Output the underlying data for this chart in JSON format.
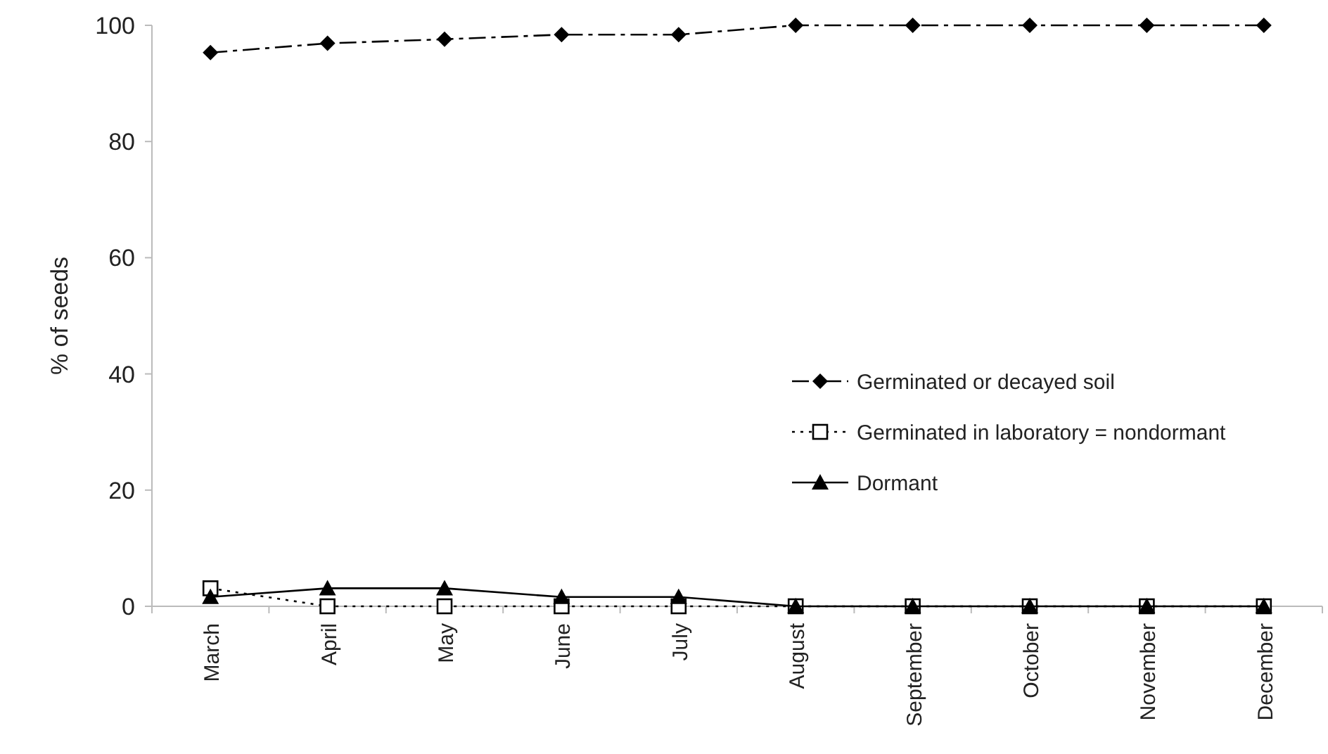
{
  "chart_data": {
    "type": "line",
    "ylabel": "% of seeds",
    "categories": [
      "March",
      "April",
      "May",
      "June",
      "July",
      "August",
      "September",
      "October",
      "November",
      "December"
    ],
    "series": [
      {
        "name": "Germinated or decayed soil",
        "color": "#000000",
        "marker": "diamond",
        "line_style": "dashed",
        "values": [
          95.3,
          96.9,
          97.6,
          98.4,
          98.4,
          100,
          100,
          100,
          100,
          100
        ]
      },
      {
        "name": "Germinated in laboratory = nondormant",
        "color": "#000000",
        "marker": "square",
        "line_style": "dotted",
        "values": [
          3.1,
          0,
          0,
          0,
          0,
          0,
          0,
          0,
          0,
          0
        ]
      },
      {
        "name": "Dormant",
        "color": "#000000",
        "marker": "triangle",
        "line_style": "solid",
        "values": [
          1.6,
          3.1,
          3.1,
          1.6,
          1.6,
          0,
          0,
          0,
          0,
          0
        ]
      }
    ],
    "ylim": [
      0,
      100
    ],
    "yticks": [
      0,
      20,
      40,
      60,
      80,
      100
    ],
    "grid": false,
    "legend": "right"
  }
}
